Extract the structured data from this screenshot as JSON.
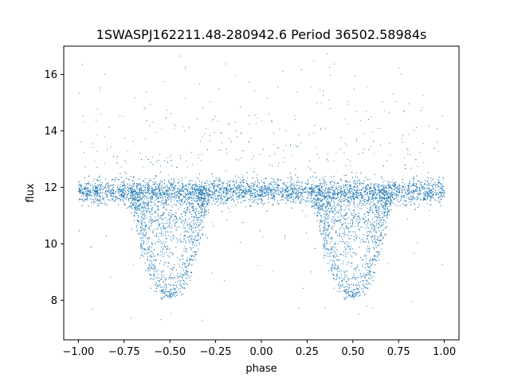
{
  "chart_data": {
    "type": "scatter",
    "title": "1SWASPJ162211.48-280942.6 Period 36502.58984s",
    "xlabel": "phase",
    "ylabel": "flux",
    "xlim": [
      -1.08,
      1.08
    ],
    "ylim": [
      6.6,
      17.0
    ],
    "xticks": [
      -1.0,
      -0.75,
      -0.5,
      -0.25,
      0.0,
      0.25,
      0.5,
      0.75,
      1.0
    ],
    "xtick_labels": [
      "−1.00",
      "−0.75",
      "−0.50",
      "−0.25",
      "0.00",
      "0.25",
      "0.50",
      "0.75",
      "1.00"
    ],
    "yticks": [
      8,
      10,
      12,
      14,
      16
    ],
    "ytick_labels": [
      "8",
      "10",
      "12",
      "14",
      "16"
    ],
    "grid": false,
    "marker_color": "#1f77b4",
    "baseline_flux": 11.85,
    "baseline_scatter": 0.22,
    "eclipse_centers": [
      -0.5,
      0.5
    ],
    "eclipse_half_width": 0.2,
    "eclipse_minimum_flux": 8.0,
    "phase_range": [
      -1.0,
      1.0
    ]
  }
}
